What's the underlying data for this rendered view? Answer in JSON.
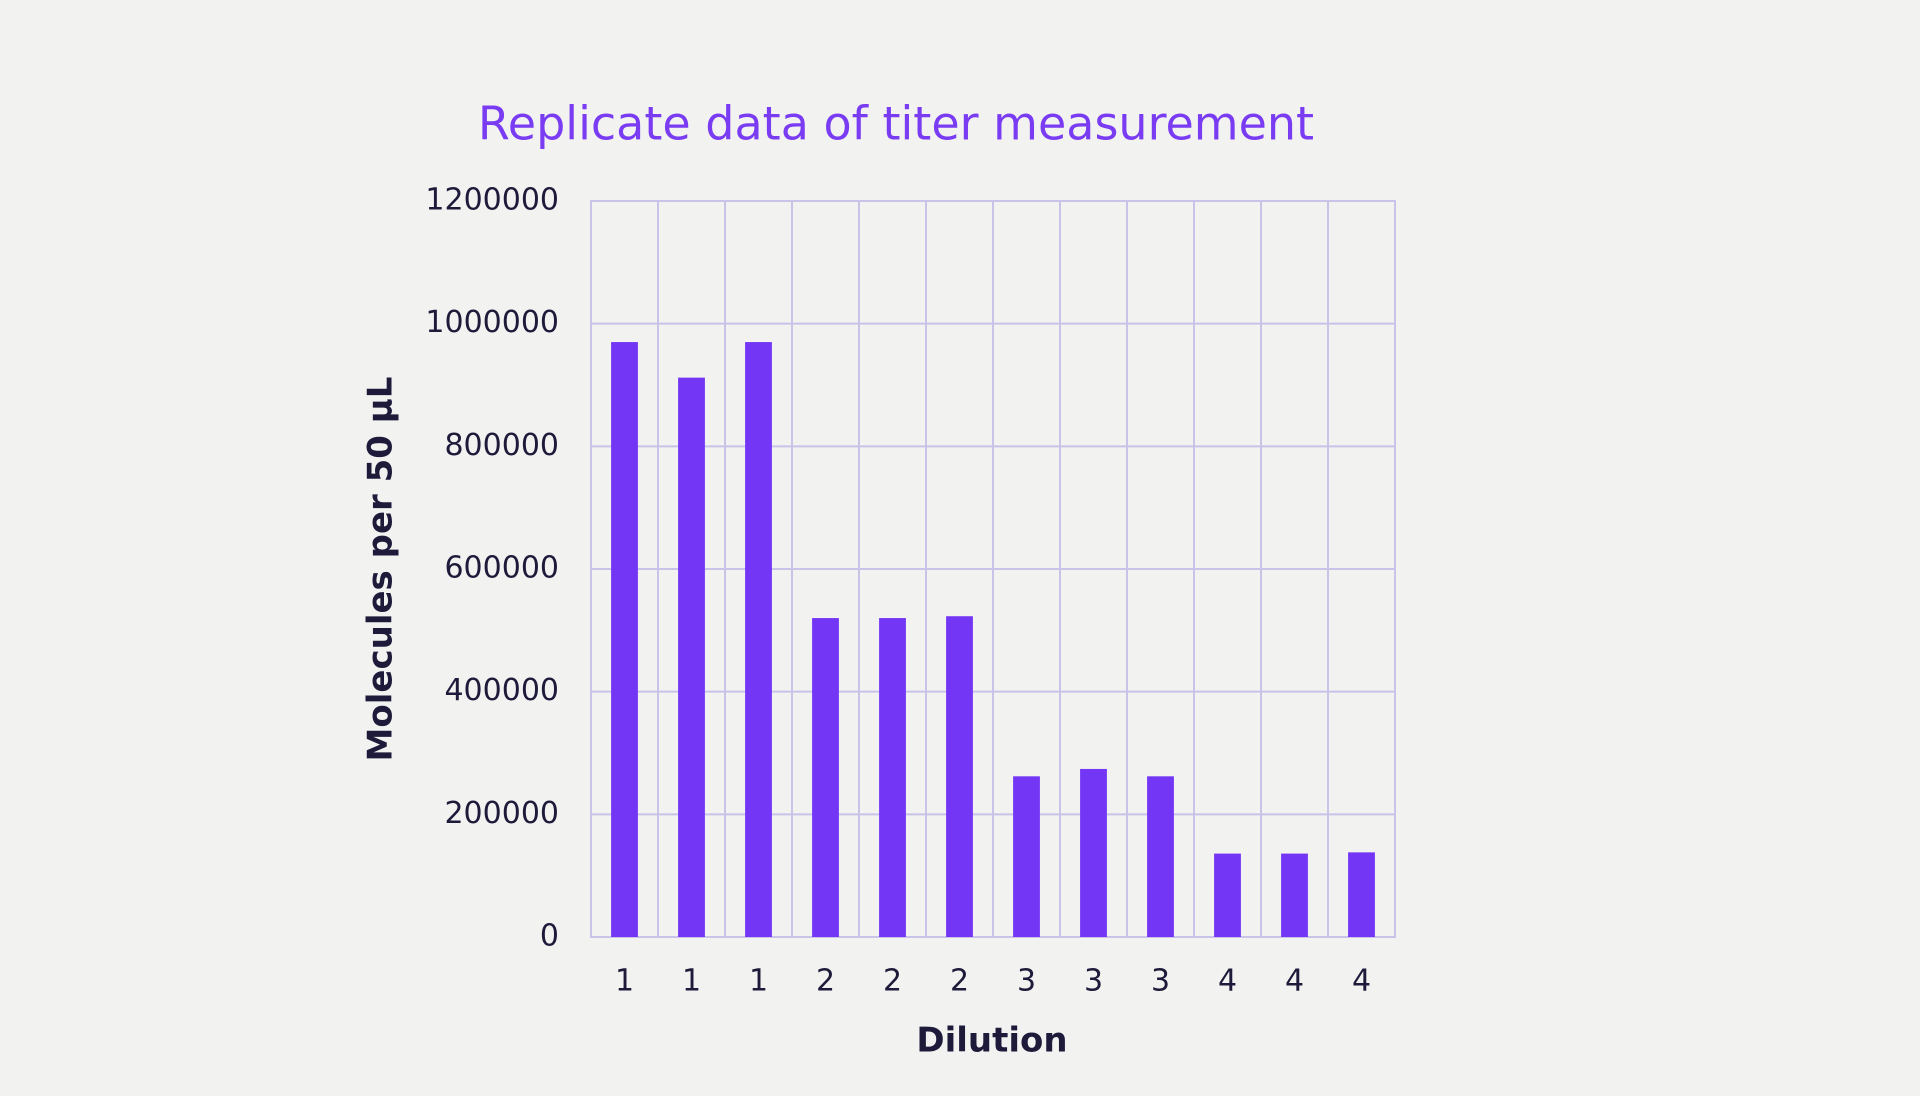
{
  "chart_data": {
    "type": "bar",
    "title": "Replicate data of titer measurement",
    "x_label": "Dilution",
    "y_label": "Molecules per 50 µL",
    "categories": [
      "1",
      "1",
      "1",
      "2",
      "2",
      "2",
      "3",
      "3",
      "3",
      "4",
      "4",
      "4"
    ],
    "values": [
      970000,
      912000,
      970000,
      520000,
      520000,
      523000,
      262000,
      274000,
      262000,
      136000,
      136000,
      138000
    ],
    "color": "#7436f5",
    "ylim": [
      0,
      1200000
    ],
    "yticks": [
      0,
      200000,
      400000,
      600000,
      800000,
      1000000,
      1200000
    ],
    "grid": true
  }
}
